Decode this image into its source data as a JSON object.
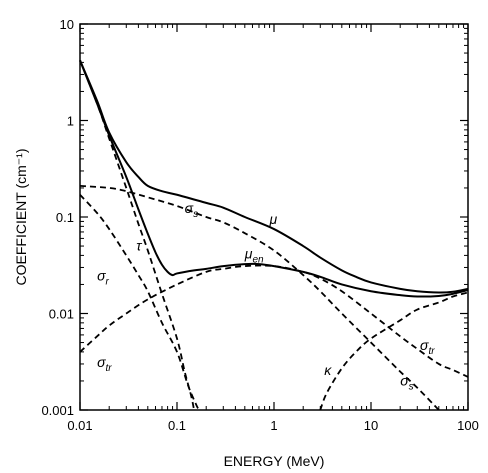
{
  "chart_data": {
    "type": "line",
    "xlabel": "ENERGY (MeV)",
    "ylabel": "COEFFICIENT (cm⁻¹)",
    "xscale": "log",
    "yscale": "log",
    "xlim": [
      0.01,
      100
    ],
    "ylim": [
      0.001,
      10
    ],
    "x_ticks": [
      0.01,
      0.1,
      1,
      10,
      100
    ],
    "x_tick_labels": [
      "0.01",
      "0.1",
      "1",
      "10",
      "100"
    ],
    "y_ticks": [
      0.001,
      0.01,
      0.1,
      1,
      10
    ],
    "y_tick_labels": [
      "0.001",
      "0.01",
      "0.1",
      "1",
      "10"
    ],
    "grid": false,
    "legend": "none (series labelled directly on curves)",
    "series": [
      {
        "name": "μ",
        "style": "solid",
        "points": [
          [
            0.01,
            4.2
          ],
          [
            0.015,
            1.6
          ],
          [
            0.02,
            0.75
          ],
          [
            0.03,
            0.37
          ],
          [
            0.04,
            0.26
          ],
          [
            0.05,
            0.21
          ],
          [
            0.07,
            0.185
          ],
          [
            0.1,
            0.17
          ],
          [
            0.2,
            0.14
          ],
          [
            0.3,
            0.125
          ],
          [
            0.5,
            0.1
          ],
          [
            1,
            0.075
          ],
          [
            2,
            0.05
          ],
          [
            3,
            0.038
          ],
          [
            5,
            0.028
          ],
          [
            7,
            0.024
          ],
          [
            10,
            0.021
          ],
          [
            20,
            0.018
          ],
          [
            30,
            0.017
          ],
          [
            50,
            0.0165
          ],
          [
            70,
            0.0168
          ],
          [
            100,
            0.018
          ]
        ]
      },
      {
        "name": "μ_en",
        "style": "solid",
        "points": [
          [
            0.01,
            4.2
          ],
          [
            0.015,
            1.5
          ],
          [
            0.02,
            0.7
          ],
          [
            0.03,
            0.26
          ],
          [
            0.04,
            0.12
          ],
          [
            0.05,
            0.067
          ],
          [
            0.06,
            0.043
          ],
          [
            0.07,
            0.032
          ],
          [
            0.08,
            0.027
          ],
          [
            0.09,
            0.025
          ],
          [
            0.1,
            0.026
          ],
          [
            0.15,
            0.028
          ],
          [
            0.2,
            0.029
          ],
          [
            0.3,
            0.031
          ],
          [
            0.5,
            0.0325
          ],
          [
            0.7,
            0.0325
          ],
          [
            1,
            0.031
          ],
          [
            2,
            0.027
          ],
          [
            3,
            0.024
          ],
          [
            5,
            0.02
          ],
          [
            10,
            0.017
          ],
          [
            20,
            0.0155
          ],
          [
            30,
            0.015
          ],
          [
            50,
            0.0152
          ],
          [
            70,
            0.016
          ],
          [
            100,
            0.0175
          ]
        ]
      },
      {
        "name": "σ_s",
        "style": "dashed",
        "points": [
          [
            0.01,
            0.21
          ],
          [
            0.02,
            0.2
          ],
          [
            0.03,
            0.185
          ],
          [
            0.05,
            0.16
          ],
          [
            0.1,
            0.13
          ],
          [
            0.2,
            0.1
          ],
          [
            0.3,
            0.088
          ],
          [
            0.5,
            0.068
          ],
          [
            1,
            0.045
          ],
          [
            2,
            0.025
          ],
          [
            3,
            0.017
          ],
          [
            5,
            0.01
          ],
          [
            10,
            0.005
          ],
          [
            20,
            0.0025
          ],
          [
            30,
            0.0017
          ],
          [
            50,
            0.001
          ]
        ]
      },
      {
        "name": "τ",
        "style": "dashed",
        "points": [
          [
            0.01,
            4.2
          ],
          [
            0.015,
            1.5
          ],
          [
            0.02,
            0.65
          ],
          [
            0.03,
            0.2
          ],
          [
            0.04,
            0.085
          ],
          [
            0.05,
            0.045
          ],
          [
            0.07,
            0.016
          ],
          [
            0.1,
            0.0055
          ],
          [
            0.12,
            0.0025
          ],
          [
            0.14,
            0.0014
          ],
          [
            0.15,
            0.001
          ]
        ]
      },
      {
        "name": "σ_r",
        "style": "dashed",
        "points": [
          [
            0.01,
            0.17
          ],
          [
            0.015,
            0.11
          ],
          [
            0.02,
            0.075
          ],
          [
            0.03,
            0.04
          ],
          [
            0.04,
            0.025
          ],
          [
            0.05,
            0.017
          ],
          [
            0.07,
            0.008
          ],
          [
            0.1,
            0.004
          ],
          [
            0.13,
            0.0018
          ],
          [
            0.16,
            0.0011
          ],
          [
            0.17,
            0.001
          ]
        ]
      },
      {
        "name": "σ_tr",
        "style": "dashed",
        "points": [
          [
            0.01,
            0.004
          ],
          [
            0.015,
            0.0058
          ],
          [
            0.02,
            0.0075
          ],
          [
            0.03,
            0.01
          ],
          [
            0.05,
            0.014
          ],
          [
            0.1,
            0.02
          ],
          [
            0.2,
            0.027
          ],
          [
            0.3,
            0.029
          ],
          [
            0.5,
            0.031
          ],
          [
            1,
            0.031
          ],
          [
            2,
            0.027
          ],
          [
            3,
            0.023
          ],
          [
            5,
            0.017
          ],
          [
            10,
            0.01
          ],
          [
            20,
            0.0058
          ],
          [
            30,
            0.0043
          ],
          [
            50,
            0.003
          ],
          [
            70,
            0.0026
          ],
          [
            100,
            0.0022
          ]
        ]
      },
      {
        "name": "κ",
        "style": "dashed",
        "points": [
          [
            3,
            0.001
          ],
          [
            3.5,
            0.0015
          ],
          [
            5,
            0.0027
          ],
          [
            7,
            0.004
          ],
          [
            10,
            0.0055
          ],
          [
            20,
            0.0085
          ],
          [
            30,
            0.011
          ],
          [
            50,
            0.013
          ],
          [
            70,
            0.015
          ],
          [
            100,
            0.0165
          ]
        ]
      }
    ],
    "annotations": [
      {
        "text": "μ",
        "sub": "",
        "x": 0.9,
        "y": 0.085
      },
      {
        "text": "μ",
        "sub": "en",
        "x": 0.5,
        "y": 0.037
      },
      {
        "text": "σ",
        "sub": "s",
        "x": 0.12,
        "y": 0.11
      },
      {
        "text": "τ",
        "sub": "",
        "x": 0.038,
        "y": 0.045
      },
      {
        "text": "σ",
        "sub": "r",
        "x": 0.015,
        "y": 0.022
      },
      {
        "text": "σ",
        "sub": "tr",
        "x": 0.015,
        "y": 0.0028
      },
      {
        "text": "κ",
        "sub": "",
        "x": 3.3,
        "y": 0.0023
      },
      {
        "text": "σ",
        "sub": "s",
        "x": 20,
        "y": 0.0018
      },
      {
        "text": "σ",
        "sub": "tr",
        "x": 32,
        "y": 0.0042
      }
    ]
  }
}
